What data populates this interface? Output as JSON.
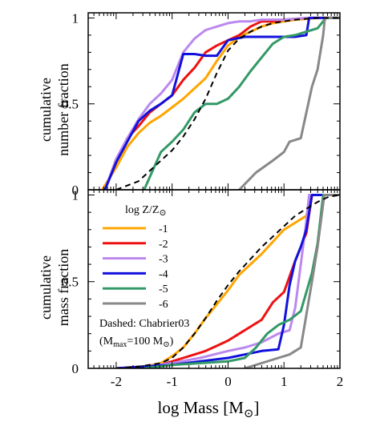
{
  "colors": {
    "-1": "#ffa500",
    "-2": "#ee1111",
    "-3": "#bb88ee",
    "-4": "#1111dd",
    "-5": "#339966",
    "-6": "#888888",
    "chabrier": "#000000"
  },
  "axis_text": {
    "ylabel_top_line1": "cumulative",
    "ylabel_top_line2": "number fraction",
    "ylabel_bottom_line1": "cumulative",
    "ylabel_bottom_line2": "mass fraction",
    "xlabel": "log Mass [M",
    "xlabel_sub": "⊙",
    "xlabel_close": "]"
  },
  "legend": {
    "title_prefix": "log Z/Z",
    "title_sub": "⊙",
    "entries": [
      "-1",
      "-2",
      "-3",
      "-4",
      "-5",
      "-6"
    ],
    "note_line1": "Dashed: Chabrier03",
    "note_line2_prefix": "(M",
    "note_line2_sub": "max",
    "note_line2_suffix": "=100 M",
    "note_line2_sun": "⊙",
    "note_line2_close": ")"
  },
  "chart_data": [
    {
      "type": "line",
      "panel": "top",
      "ylabel": "cumulative number fraction",
      "xlim": [
        -2.5,
        2
      ],
      "ylim": [
        0,
        1.03
      ],
      "xticks": [
        -2,
        -1,
        0,
        1,
        2
      ],
      "yticks": [
        0,
        0.5,
        1
      ],
      "ytick_labels": [
        "0",
        "0.5",
        "1"
      ],
      "series": [
        {
          "name": "-1",
          "x": [
            -2.25,
            -2.0,
            -1.8,
            -1.6,
            -1.4,
            -1.2,
            -1.0,
            -0.8,
            -0.6,
            -0.4,
            -0.2,
            0.0,
            0.2,
            0.4,
            0.6,
            0.8,
            1.0,
            1.2,
            1.4,
            1.6,
            2.0
          ],
          "y": [
            0.0,
            0.13,
            0.25,
            0.33,
            0.39,
            0.43,
            0.48,
            0.53,
            0.59,
            0.65,
            0.75,
            0.84,
            0.89,
            0.92,
            0.95,
            0.97,
            0.98,
            0.99,
            0.995,
            1.0,
            1.0
          ]
        },
        {
          "name": "-2",
          "x": [
            -2.2,
            -2.0,
            -1.8,
            -1.6,
            -1.4,
            -1.2,
            -1.0,
            -0.8,
            -0.6,
            -0.4,
            -0.2,
            0.0,
            0.2,
            0.4,
            0.6,
            0.8,
            1.0,
            1.2,
            1.5,
            2.0
          ],
          "y": [
            0.0,
            0.16,
            0.3,
            0.37,
            0.45,
            0.5,
            0.55,
            0.64,
            0.71,
            0.8,
            0.84,
            0.87,
            0.9,
            0.95,
            0.98,
            0.98,
            0.99,
            0.995,
            1.0,
            1.0
          ]
        },
        {
          "name": "-3",
          "x": [
            -2.2,
            -2.0,
            -1.8,
            -1.6,
            -1.4,
            -1.2,
            -1.0,
            -0.8,
            -0.6,
            -0.4,
            -0.2,
            0.0,
            0.2,
            0.4,
            0.6,
            0.8,
            1.0,
            1.2,
            1.4,
            2.0
          ],
          "y": [
            0.0,
            0.18,
            0.3,
            0.41,
            0.5,
            0.56,
            0.64,
            0.8,
            0.88,
            0.93,
            0.95,
            0.97,
            0.98,
            0.98,
            0.99,
            0.99,
            0.99,
            0.995,
            1.0,
            1.0
          ]
        },
        {
          "name": "-4",
          "x": [
            -2.2,
            -2.0,
            -1.8,
            -1.6,
            -1.4,
            -1.2,
            -1.0,
            -0.8,
            -0.6,
            -0.4,
            -0.2,
            0.0,
            0.3,
            0.6,
            0.9,
            1.2,
            1.4,
            1.45,
            2.0
          ],
          "y": [
            0.0,
            0.16,
            0.28,
            0.4,
            0.46,
            0.5,
            0.55,
            0.79,
            0.79,
            0.78,
            0.78,
            0.87,
            0.89,
            0.89,
            0.89,
            0.89,
            0.9,
            1.0,
            1.0
          ]
        },
        {
          "name": "-5",
          "x": [
            -1.5,
            -1.2,
            -1.0,
            -0.8,
            -0.6,
            -0.4,
            -0.2,
            0.0,
            0.2,
            0.4,
            0.6,
            0.8,
            1.0,
            1.2,
            1.4,
            1.6,
            1.75,
            2.0
          ],
          "y": [
            0.0,
            0.22,
            0.28,
            0.35,
            0.45,
            0.5,
            0.5,
            0.53,
            0.6,
            0.69,
            0.77,
            0.85,
            0.89,
            0.9,
            0.92,
            0.94,
            1.0,
            1.0
          ]
        },
        {
          "name": "-6",
          "x": [
            0.2,
            0.5,
            0.8,
            1.0,
            1.1,
            1.3,
            1.5,
            1.6,
            1.7,
            1.73,
            2.0
          ],
          "y": [
            0.0,
            0.1,
            0.17,
            0.22,
            0.28,
            0.3,
            0.6,
            0.7,
            0.9,
            1.0,
            1.0
          ]
        },
        {
          "name": "Dashed: Chabrier03",
          "dashed": true,
          "x": [
            -2.0,
            -1.6,
            -1.2,
            -1.0,
            -0.8,
            -0.6,
            -0.4,
            -0.2,
            0.0,
            0.2,
            0.4,
            0.6,
            0.8,
            1.0,
            1.2,
            1.4,
            1.6,
            2.0
          ],
          "y": [
            0.0,
            0.05,
            0.17,
            0.23,
            0.31,
            0.41,
            0.53,
            0.68,
            0.81,
            0.88,
            0.92,
            0.95,
            0.97,
            0.98,
            0.99,
            0.995,
            1.0,
            1.0
          ]
        }
      ]
    },
    {
      "type": "line",
      "panel": "bottom",
      "ylabel": "cumulative mass fraction",
      "xlabel": "log Mass [M⊙]",
      "xlim": [
        -2.5,
        2
      ],
      "ylim": [
        0,
        1.03
      ],
      "xticks": [
        -2,
        -1,
        0,
        1,
        2
      ],
      "xtick_labels": [
        "-2",
        "-1",
        "0",
        "1",
        "2"
      ],
      "yticks": [
        0,
        0.5,
        1
      ],
      "ytick_labels": [
        "0",
        "0.5",
        "1"
      ],
      "series": [
        {
          "name": "-1",
          "x": [
            -2.0,
            -1.5,
            -1.2,
            -1.0,
            -0.8,
            -0.6,
            -0.4,
            -0.2,
            0.0,
            0.2,
            0.4,
            0.6,
            0.8,
            1.0,
            1.2,
            1.4,
            1.5,
            2.0
          ],
          "y": [
            0.0,
            0.01,
            0.03,
            0.07,
            0.12,
            0.2,
            0.29,
            0.37,
            0.45,
            0.54,
            0.6,
            0.66,
            0.73,
            0.8,
            0.84,
            0.88,
            1.0,
            1.0
          ]
        },
        {
          "name": "-2",
          "x": [
            -2.0,
            -1.5,
            -1.2,
            -1.0,
            -0.8,
            -0.6,
            -0.4,
            -0.2,
            0.0,
            0.2,
            0.4,
            0.6,
            0.8,
            1.0,
            1.2,
            1.4,
            1.5,
            2.0
          ],
          "y": [
            0.0,
            0.01,
            0.02,
            0.04,
            0.06,
            0.08,
            0.1,
            0.13,
            0.16,
            0.2,
            0.24,
            0.28,
            0.38,
            0.44,
            0.62,
            0.78,
            1.0,
            1.0
          ]
        },
        {
          "name": "-3",
          "x": [
            -2.0,
            -1.5,
            -1.0,
            -0.5,
            0.0,
            0.3,
            0.6,
            0.9,
            1.1,
            1.2,
            1.3,
            1.4,
            1.45,
            2.0
          ],
          "y": [
            0.0,
            0.01,
            0.03,
            0.06,
            0.1,
            0.12,
            0.15,
            0.2,
            0.22,
            0.35,
            0.6,
            0.85,
            1.0,
            1.0
          ]
        },
        {
          "name": "-4",
          "x": [
            -2.0,
            -1.5,
            -1.0,
            -0.5,
            0.0,
            0.3,
            0.6,
            0.9,
            1.0,
            1.1,
            1.2,
            1.3,
            1.4,
            1.5,
            2.0
          ],
          "y": [
            0.0,
            0.01,
            0.02,
            0.04,
            0.06,
            0.08,
            0.1,
            0.11,
            0.25,
            0.48,
            0.62,
            0.7,
            0.8,
            1.0,
            1.0
          ]
        },
        {
          "name": "-5",
          "x": [
            -1.5,
            -1.0,
            -0.5,
            0.0,
            0.3,
            0.5,
            0.7,
            0.9,
            1.1,
            1.3,
            1.5,
            1.6,
            1.7,
            2.0
          ],
          "y": [
            0.0,
            0.02,
            0.03,
            0.04,
            0.06,
            0.12,
            0.2,
            0.25,
            0.28,
            0.33,
            0.55,
            0.72,
            1.0,
            1.0
          ]
        },
        {
          "name": "-6",
          "x": [
            0.3,
            0.6,
            0.9,
            1.1,
            1.2,
            1.3,
            1.5,
            1.6,
            1.72,
            2.0
          ],
          "y": [
            0.0,
            0.03,
            0.06,
            0.08,
            0.1,
            0.12,
            0.5,
            0.7,
            1.0,
            1.0
          ]
        },
        {
          "name": "Dashed: Chabrier03",
          "dashed": true,
          "x": [
            -2.0,
            -1.6,
            -1.2,
            -1.0,
            -0.8,
            -0.6,
            -0.4,
            -0.2,
            0.0,
            0.2,
            0.4,
            0.6,
            0.8,
            1.0,
            1.2,
            1.4,
            1.6,
            1.8,
            2.0
          ],
          "y": [
            0.0,
            0.01,
            0.03,
            0.06,
            0.12,
            0.2,
            0.29,
            0.39,
            0.48,
            0.56,
            0.63,
            0.7,
            0.76,
            0.82,
            0.88,
            0.92,
            0.96,
            0.99,
            1.0
          ]
        }
      ]
    }
  ]
}
